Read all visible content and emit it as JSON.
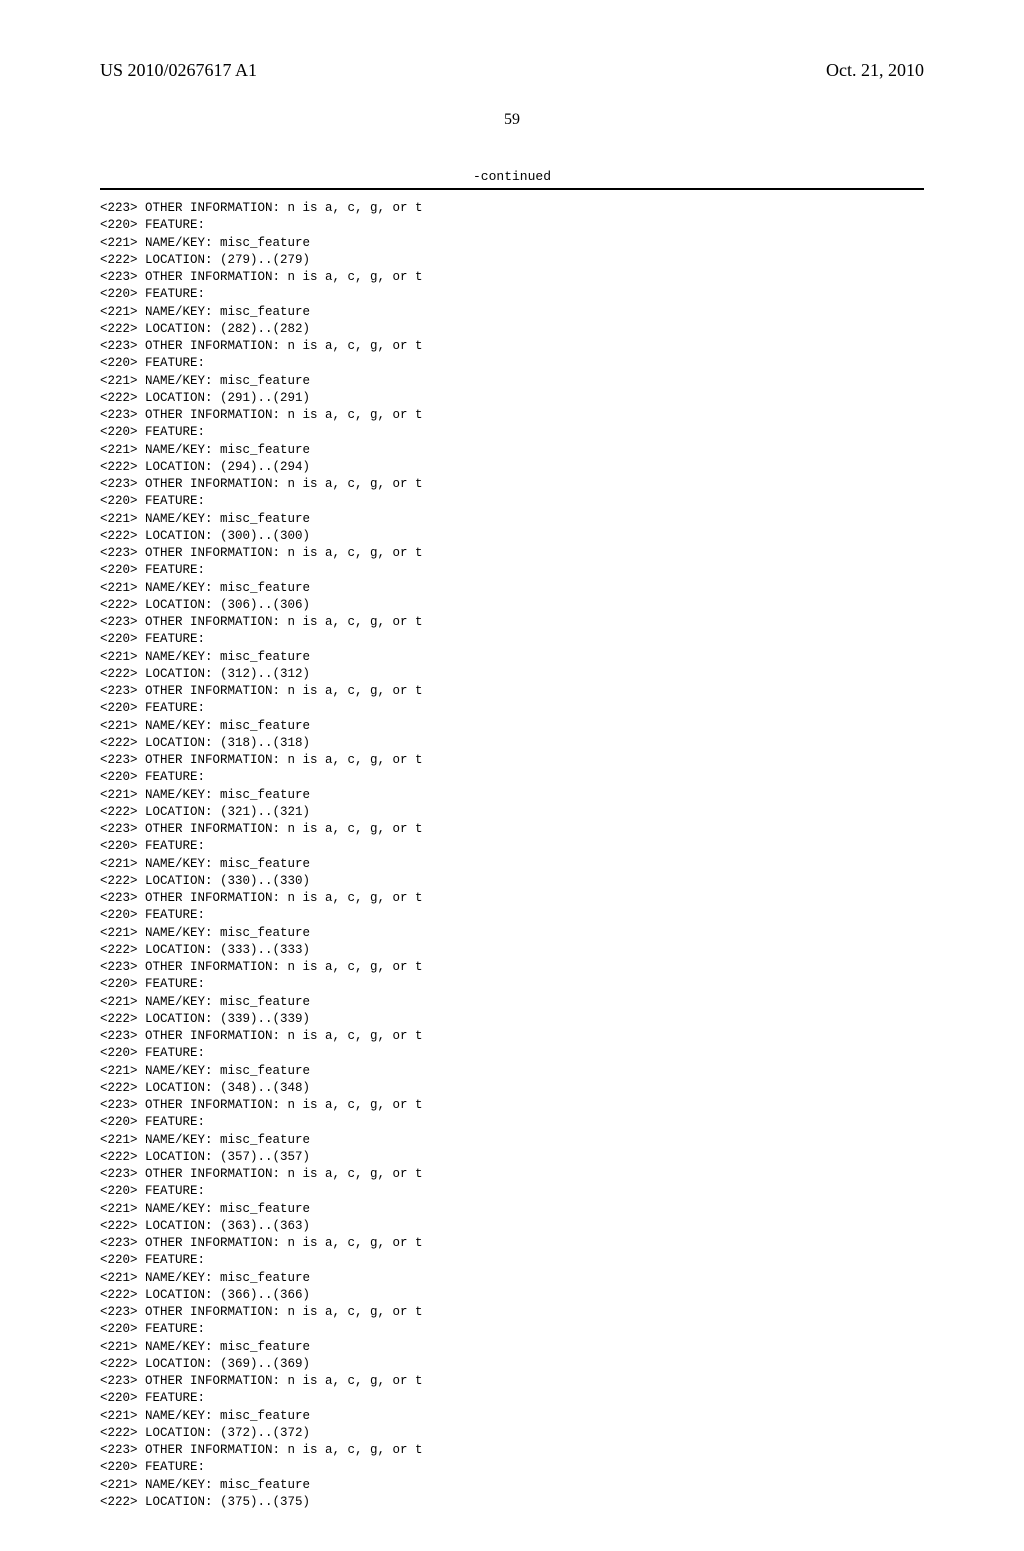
{
  "header": {
    "pub_number": "US 2010/0267617 A1",
    "pub_date": "Oct. 21, 2010",
    "page_number": "59"
  },
  "continued_label": "-continued",
  "feature_lines": [
    "<223> OTHER INFORMATION: n is a, c, g, or t",
    "<220> FEATURE:",
    "<221> NAME/KEY: misc_feature",
    "<222> LOCATION: (279)..(279)",
    "<223> OTHER INFORMATION: n is a, c, g, or t",
    "<220> FEATURE:",
    "<221> NAME/KEY: misc_feature",
    "<222> LOCATION: (282)..(282)",
    "<223> OTHER INFORMATION: n is a, c, g, or t",
    "<220> FEATURE:",
    "<221> NAME/KEY: misc_feature",
    "<222> LOCATION: (291)..(291)",
    "<223> OTHER INFORMATION: n is a, c, g, or t",
    "<220> FEATURE:",
    "<221> NAME/KEY: misc_feature",
    "<222> LOCATION: (294)..(294)",
    "<223> OTHER INFORMATION: n is a, c, g, or t",
    "<220> FEATURE:",
    "<221> NAME/KEY: misc_feature",
    "<222> LOCATION: (300)..(300)",
    "<223> OTHER INFORMATION: n is a, c, g, or t",
    "<220> FEATURE:",
    "<221> NAME/KEY: misc_feature",
    "<222> LOCATION: (306)..(306)",
    "<223> OTHER INFORMATION: n is a, c, g, or t",
    "<220> FEATURE:",
    "<221> NAME/KEY: misc_feature",
    "<222> LOCATION: (312)..(312)",
    "<223> OTHER INFORMATION: n is a, c, g, or t",
    "<220> FEATURE:",
    "<221> NAME/KEY: misc_feature",
    "<222> LOCATION: (318)..(318)",
    "<223> OTHER INFORMATION: n is a, c, g, or t",
    "<220> FEATURE:",
    "<221> NAME/KEY: misc_feature",
    "<222> LOCATION: (321)..(321)",
    "<223> OTHER INFORMATION: n is a, c, g, or t",
    "<220> FEATURE:",
    "<221> NAME/KEY: misc_feature",
    "<222> LOCATION: (330)..(330)",
    "<223> OTHER INFORMATION: n is a, c, g, or t",
    "<220> FEATURE:",
    "<221> NAME/KEY: misc_feature",
    "<222> LOCATION: (333)..(333)",
    "<223> OTHER INFORMATION: n is a, c, g, or t",
    "<220> FEATURE:",
    "<221> NAME/KEY: misc_feature",
    "<222> LOCATION: (339)..(339)",
    "<223> OTHER INFORMATION: n is a, c, g, or t",
    "<220> FEATURE:",
    "<221> NAME/KEY: misc_feature",
    "<222> LOCATION: (348)..(348)",
    "<223> OTHER INFORMATION: n is a, c, g, or t",
    "<220> FEATURE:",
    "<221> NAME/KEY: misc_feature",
    "<222> LOCATION: (357)..(357)",
    "<223> OTHER INFORMATION: n is a, c, g, or t",
    "<220> FEATURE:",
    "<221> NAME/KEY: misc_feature",
    "<222> LOCATION: (363)..(363)",
    "<223> OTHER INFORMATION: n is a, c, g, or t",
    "<220> FEATURE:",
    "<221> NAME/KEY: misc_feature",
    "<222> LOCATION: (366)..(366)",
    "<223> OTHER INFORMATION: n is a, c, g, or t",
    "<220> FEATURE:",
    "<221> NAME/KEY: misc_feature",
    "<222> LOCATION: (369)..(369)",
    "<223> OTHER INFORMATION: n is a, c, g, or t",
    "<220> FEATURE:",
    "<221> NAME/KEY: misc_feature",
    "<222> LOCATION: (372)..(372)",
    "<223> OTHER INFORMATION: n is a, c, g, or t",
    "<220> FEATURE:",
    "<221> NAME/KEY: misc_feature",
    "<222> LOCATION: (375)..(375)"
  ]
}
